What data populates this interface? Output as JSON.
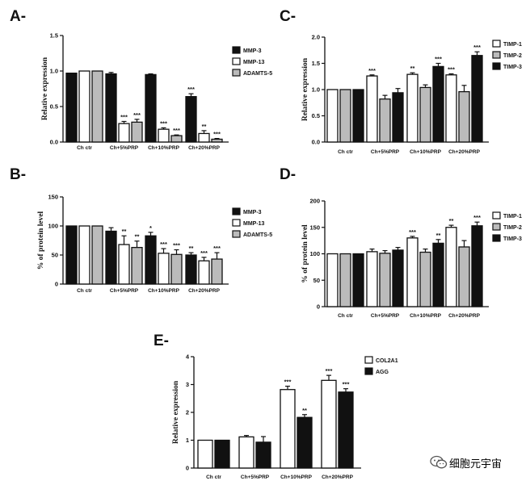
{
  "watermark": {
    "icon": "wechat-icon",
    "text": "细胞元宇宙"
  },
  "chart_data": [
    {
      "panel": "A-",
      "type": "bar",
      "ylabel": "Relative expression",
      "ylim": [
        0,
        1.5
      ],
      "yticks": [
        "0.0",
        "0.5",
        "1.0",
        "1.5"
      ],
      "categories": [
        "Ch ctr",
        "Ch+5%PRP",
        "Ch+10%PRP",
        "Ch+20%PRP"
      ],
      "legend_position": "right",
      "series": [
        {
          "name": "MMP-3",
          "color": "#111111",
          "values": [
            0.97,
            0.96,
            0.95,
            0.64
          ],
          "errors": [
            0.0,
            0.02,
            0.01,
            0.04
          ],
          "sig": [
            "",
            "",
            "",
            "***"
          ]
        },
        {
          "name": "MMP-13",
          "color": "#ffffff",
          "values": [
            1.0,
            0.26,
            0.18,
            0.12
          ],
          "errors": [
            0.0,
            0.03,
            0.02,
            0.04
          ],
          "sig": [
            "",
            "***",
            "***",
            "**"
          ]
        },
        {
          "name": "ADAMTS-5",
          "color": "#bbbbbb",
          "values": [
            1.0,
            0.28,
            0.09,
            0.04
          ],
          "errors": [
            0.0,
            0.04,
            0.01,
            0.01
          ],
          "sig": [
            "",
            "***",
            "***",
            "***"
          ]
        }
      ]
    },
    {
      "panel": "B-",
      "type": "bar",
      "ylabel": "% of protein level",
      "ylim": [
        0,
        150
      ],
      "yticks": [
        "0",
        "50",
        "100",
        "150"
      ],
      "categories": [
        "Ch ctr",
        "Ch+5%PRP",
        "Ch+10%PRP",
        "Ch+20%PRP"
      ],
      "legend_position": "right",
      "series": [
        {
          "name": "MMP-3",
          "color": "#111111",
          "values": [
            100,
            91,
            83,
            50
          ],
          "errors": [
            0,
            6,
            6,
            4
          ],
          "sig": [
            "",
            "",
            "*",
            "**"
          ]
        },
        {
          "name": "MMP-13",
          "color": "#ffffff",
          "values": [
            100,
            68,
            53,
            40
          ],
          "errors": [
            0,
            15,
            8,
            6
          ],
          "sig": [
            "",
            "**",
            "***",
            "***"
          ]
        },
        {
          "name": "ADAMTS-5",
          "color": "#bbbbbb",
          "values": [
            100,
            63,
            51,
            43
          ],
          "errors": [
            0,
            11,
            8,
            11
          ],
          "sig": [
            "",
            "**",
            "***",
            "***"
          ]
        }
      ]
    },
    {
      "panel": "C-",
      "type": "bar",
      "ylabel": "Relative expression",
      "ylim": [
        0,
        2.0
      ],
      "yticks": [
        "0.0",
        "0.5",
        "1.0",
        "1.5",
        "2.0"
      ],
      "categories": [
        "Ch ctr",
        "Ch+5%PRP",
        "Ch+10%PRP",
        "Ch+20%PRP"
      ],
      "legend_position": "right",
      "series": [
        {
          "name": "TIMP-1",
          "color": "#ffffff",
          "values": [
            1.0,
            1.26,
            1.29,
            1.28
          ],
          "errors": [
            0.0,
            0.02,
            0.03,
            0.02
          ],
          "sig": [
            "",
            "***",
            "**",
            "***"
          ]
        },
        {
          "name": "TIMP-2",
          "color": "#bbbbbb",
          "values": [
            1.0,
            0.82,
            1.04,
            0.96
          ],
          "errors": [
            0.0,
            0.07,
            0.05,
            0.12
          ],
          "sig": [
            "",
            "",
            "",
            ""
          ]
        },
        {
          "name": "TIMP-3",
          "color": "#111111",
          "values": [
            1.0,
            0.94,
            1.44,
            1.65
          ],
          "errors": [
            0.0,
            0.08,
            0.06,
            0.07
          ],
          "sig": [
            "",
            "",
            "***",
            "***"
          ]
        }
      ]
    },
    {
      "panel": "D-",
      "type": "bar",
      "ylabel": "% of protein level",
      "ylim": [
        0,
        200
      ],
      "yticks": [
        "0",
        "50",
        "100",
        "150",
        "200"
      ],
      "categories": [
        "Ch ctr",
        "Ch+5%PRP",
        "Ch+10%PRP",
        "Ch+20%PRP"
      ],
      "legend_position": "right",
      "series": [
        {
          "name": "TIMP-1",
          "color": "#ffffff",
          "values": [
            100,
            104,
            130,
            150
          ],
          "errors": [
            0,
            5,
            3,
            4
          ],
          "sig": [
            "",
            "",
            "***",
            "**"
          ]
        },
        {
          "name": "TIMP-2",
          "color": "#bbbbbb",
          "values": [
            100,
            101,
            103,
            113
          ],
          "errors": [
            0,
            5,
            6,
            12
          ],
          "sig": [
            "",
            "",
            "",
            ""
          ]
        },
        {
          "name": "TIMP-3",
          "color": "#111111",
          "values": [
            100,
            107,
            120,
            153
          ],
          "errors": [
            0,
            5,
            7,
            7
          ],
          "sig": [
            "",
            "",
            "**",
            "***"
          ]
        }
      ]
    },
    {
      "panel": "E-",
      "type": "bar",
      "ylabel": "Relative expression",
      "ylim": [
        0,
        4
      ],
      "yticks": [
        "0",
        "1",
        "2",
        "3",
        "4"
      ],
      "categories": [
        "Ch ctr",
        "Ch+5%PRP",
        "Ch+10%PRP",
        "Ch+20%PRP"
      ],
      "legend_position": "right",
      "series": [
        {
          "name": "COL2A1",
          "color": "#ffffff",
          "values": [
            1.0,
            1.12,
            2.82,
            3.15
          ],
          "errors": [
            0.0,
            0.05,
            0.12,
            0.18
          ],
          "sig": [
            "",
            "",
            "***",
            "***"
          ]
        },
        {
          "name": "AGG",
          "color": "#111111",
          "values": [
            1.0,
            0.93,
            1.82,
            2.73
          ],
          "errors": [
            0.0,
            0.2,
            0.1,
            0.12
          ],
          "sig": [
            "",
            "",
            "**",
            "***"
          ]
        }
      ]
    }
  ]
}
